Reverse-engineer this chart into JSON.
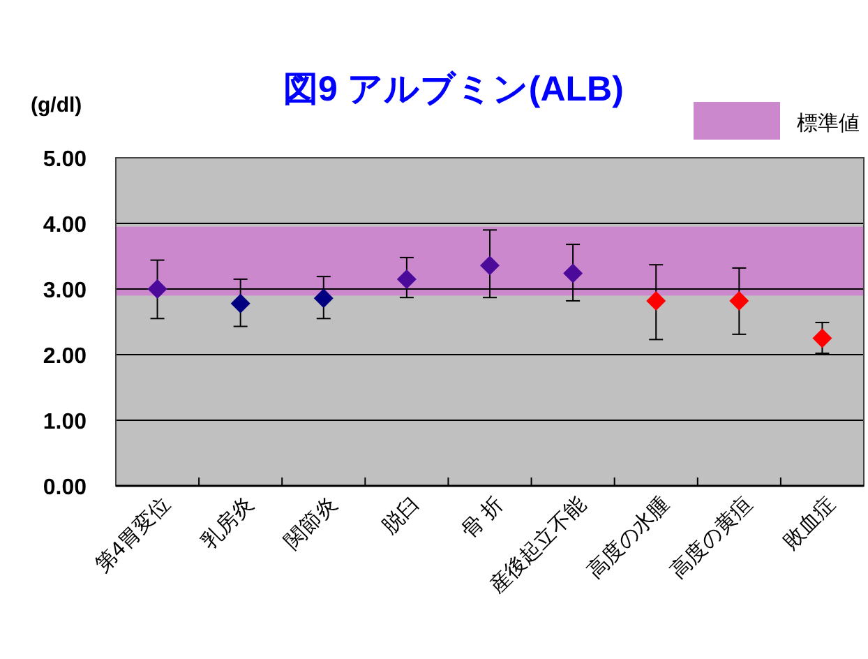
{
  "chart_data": {
    "type": "scatter",
    "title": "図9  アルブミン(ALB)",
    "ylabel": "(g/dl)",
    "categories": [
      "第4胃変位",
      "乳房炎",
      "関節炎",
      "脱臼",
      "骨 折",
      "産後起立不能",
      "高度の水腫",
      "高度の黄疸",
      "敗血症"
    ],
    "values": [
      3.0,
      2.78,
      2.86,
      3.15,
      3.36,
      3.24,
      2.82,
      2.82,
      2.25
    ],
    "errors": [
      [
        2.55,
        3.44
      ],
      [
        2.43,
        3.15
      ],
      [
        2.55,
        3.19
      ],
      [
        2.87,
        3.48
      ],
      [
        2.87,
        3.9
      ],
      [
        2.82,
        3.68
      ],
      [
        2.23,
        3.37
      ],
      [
        2.31,
        3.32
      ],
      [
        2.02,
        2.49
      ]
    ],
    "colors": [
      "#4b0a9a",
      "#000080",
      "#000080",
      "#4b0a9a",
      "#4b0a9a",
      "#4b0a9a",
      "#ff0000",
      "#ff0000",
      "#ff0000"
    ],
    "ylim": [
      0,
      5
    ],
    "yticks": [
      {
        "value": 0,
        "label": "0.00"
      },
      {
        "value": 1,
        "label": "1.00"
      },
      {
        "value": 2,
        "label": "2.00"
      },
      {
        "value": 3,
        "label": "3.00"
      },
      {
        "value": 4,
        "label": "4.00"
      },
      {
        "value": 5,
        "label": "5.00"
      }
    ],
    "bands": [
      {
        "axis": "y",
        "from": 2.9,
        "to": 3.95,
        "label": "標準値",
        "color": "#cc88cc"
      }
    ],
    "grid": "y",
    "legend": "top right",
    "marker": "diamond"
  }
}
